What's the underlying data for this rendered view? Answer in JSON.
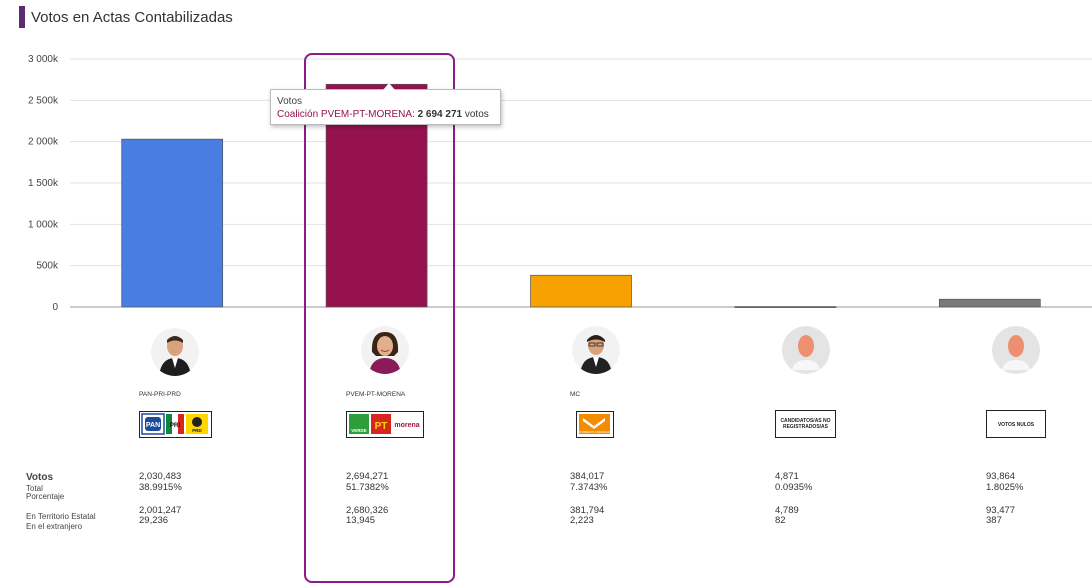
{
  "header": {
    "title": "Votos en Actas Contabilizadas"
  },
  "colors": {
    "accent": "#5b2c6f",
    "pan_pri_prd": "#4a7de0",
    "morena": "#95124f",
    "mc": "#f7a200",
    "no_reg": "#7a7a7a",
    "nulos": "#7a7a7a"
  },
  "chart_data": {
    "type": "bar",
    "categories": [
      "PAN-PRI-PRD",
      "PVEM-PT-MORENA",
      "MC",
      "CANDIDATOS/AS NO REGISTRADOS/AS",
      "VOTOS NULOS"
    ],
    "values": [
      2030483,
      2694271,
      384017,
      4871,
      93864
    ],
    "ylim": [
      0,
      3000000
    ],
    "yticks": [
      0,
      500000,
      1000000,
      1500000,
      2000000,
      2500000,
      3000000
    ],
    "ytick_labels": [
      "0",
      "500k",
      "1 000k",
      "1 500k",
      "2 000k",
      "2 500k",
      "3 000k"
    ],
    "grid": true,
    "tooltip": {
      "header": "Votos",
      "candidate": "Coalición PVEM-PT-MORENA",
      "sep": ": ",
      "value": "2 694 271",
      "unit": " votos"
    }
  },
  "candidates": [
    {
      "label": "PAN-PRI-PRD",
      "total": "2,030,483",
      "pct": "38.9915%",
      "estatal": "2,001,247",
      "extranjero": "29,236"
    },
    {
      "label": "PVEM-PT-MORENA",
      "total": "2,694,271",
      "pct": "51.7382%",
      "estatal": "2,680,326",
      "extranjero": "13,945"
    },
    {
      "label": "MC",
      "total": "384,017",
      "pct": "7.3743%",
      "estatal": "381,794",
      "extranjero": "2,223"
    },
    {
      "label": "",
      "total": "4,871",
      "pct": "0.0935%",
      "estatal": "4,789",
      "extranjero": "82"
    },
    {
      "label": "",
      "total": "93,864",
      "pct": "1.8025%",
      "estatal": "93,477",
      "extranjero": "387"
    }
  ],
  "logos": {
    "pan": "PAN",
    "pri": "PRI",
    "prd": "PRD",
    "verde": "VERDE",
    "pt": "PT",
    "morena": "morena",
    "mc": "MOVIMIENTO CIUDADANO",
    "no_reg": "CANDIDATOS/AS NO REGISTRADOS/AS",
    "nulos": "VOTOS NULOS"
  },
  "table_labels": {
    "votos": "Votos",
    "total": "Total",
    "porcentaje": "Porcentaje",
    "estatal": "En Territorio Estatal",
    "extranjero": "En el extranjero"
  }
}
